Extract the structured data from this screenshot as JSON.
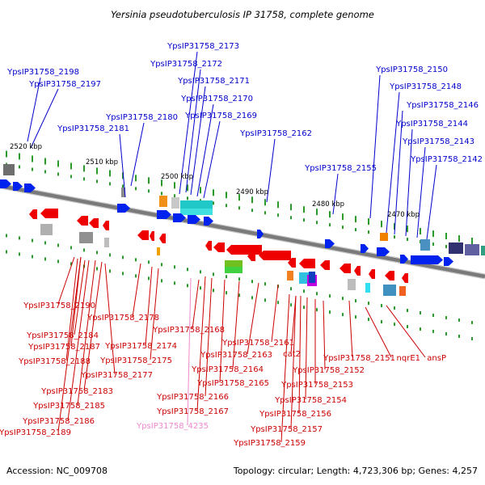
{
  "title": "Yersinia pseudotuberculosis IP 31758, complete genome",
  "footer": {
    "accession": "Accession: NC_009708",
    "summary": "Topology: circular; Length: 4,723,306 bp; Genes: 4,257"
  },
  "colors": {
    "forward_label": "#0000cc",
    "reverse_label": "#cc0000",
    "pseudo_label": "#ee88cc",
    "forward_arrow": "#0022ee",
    "reverse_arrow": "#ee0000",
    "backbone": "#7a7a7a",
    "tick": "#2a9a2a"
  },
  "coordinates": [
    "2520 kbp",
    "2510 kbp",
    "2500 kbp",
    "2490 kbp",
    "2480 kbp",
    "2470 kbp"
  ],
  "forward_genes": [
    "YpsIP31758_2198",
    "YpsIP31758_2197",
    "YpsIP31758_2181",
    "YpsIP31758_2180",
    "YpsIP31758_2173",
    "YpsIP31758_2172",
    "YpsIP31758_2171",
    "YpsIP31758_2170",
    "YpsIP31758_2169",
    "YpsIP31758_2162",
    "YpsIP31758_2155",
    "YpsIP31758_2150",
    "YpsIP31758_2148",
    "YpsIP31758_2146",
    "YpsIP31758_2144",
    "YpsIP31758_2143",
    "YpsIP31758_2142"
  ],
  "reverse_genes": [
    "YpsIP31758_2190",
    "YpsIP31758_2178",
    "YpsIP31758_2184",
    "YpsIP31758_2187",
    "YpsIP31758_2174",
    "YpsIP31758_2188",
    "YpsIP31758_2175",
    "YpsIP31758_2177",
    "YpsIP31758_2183",
    "YpsIP31758_2185",
    "YpsIP31758_2186",
    "YpsIP31758_2189",
    "YpsIP31758_2168",
    "YpsIP31758_2161",
    "YpsIP31758_2163",
    "YpsIP31758_2164",
    "YpsIP31758_2165",
    "YpsIP31758_2166",
    "YpsIP31758_2167",
    "cat2",
    "YpsIP31758_2151",
    "nqrE1",
    "ansP",
    "YpsIP31758_2152",
    "YpsIP31758_2153",
    "YpsIP31758_2154",
    "YpsIP31758_2156",
    "YpsIP31758_2157",
    "YpsIP31758_2159"
  ],
  "pseudo_genes": [
    "YpsIP31758_4235"
  ]
}
